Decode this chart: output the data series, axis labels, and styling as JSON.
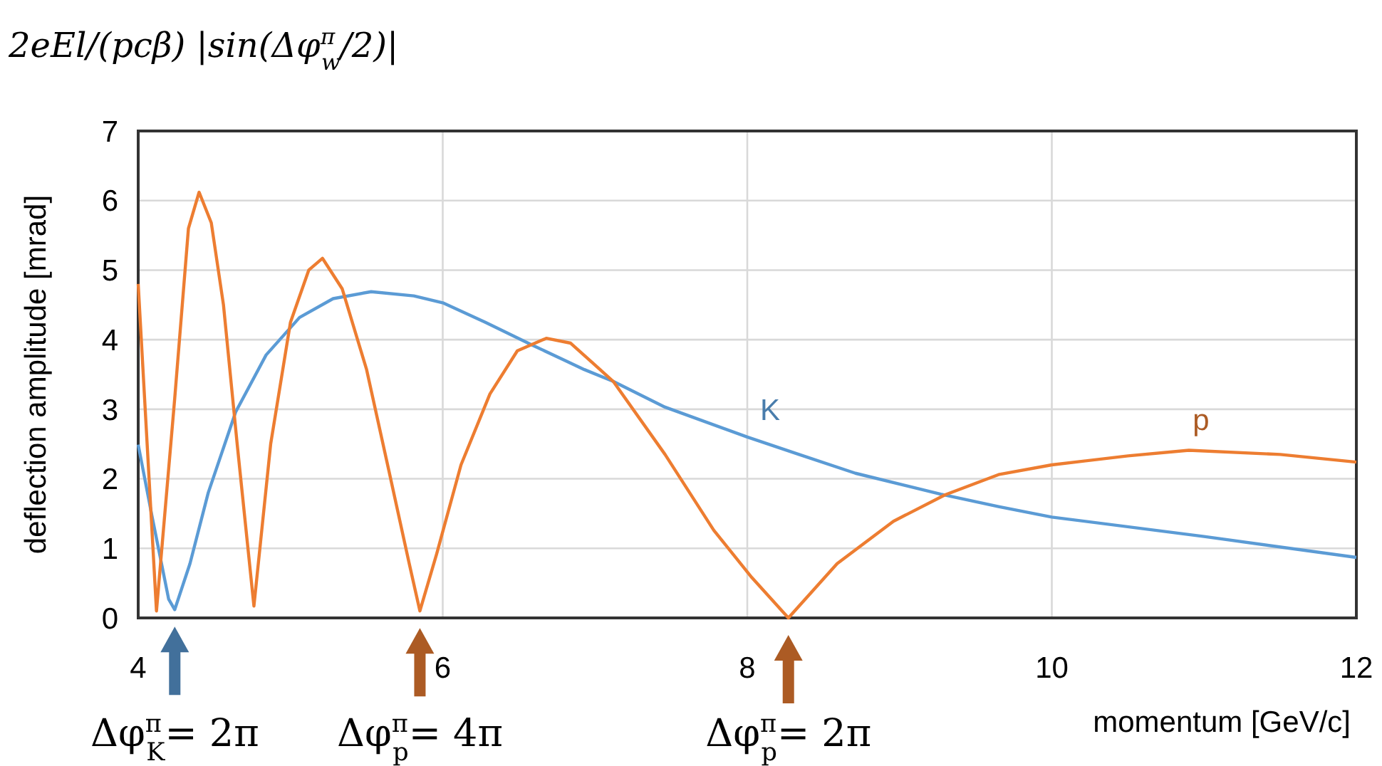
{
  "chart_data": {
    "type": "line",
    "xlabel": "momentum [GeV/c]",
    "ylabel": "deflection amplitude [mrad]",
    "xlim": [
      4,
      12
    ],
    "ylim": [
      0,
      7
    ],
    "xticks": [
      4,
      6,
      8,
      10,
      12
    ],
    "yticks": [
      0,
      1,
      2,
      3,
      4,
      5,
      6,
      7
    ],
    "grid": true,
    "legend": false,
    "marker": "none",
    "line_style": "solid",
    "series": [
      {
        "name": "K",
        "color": "#5b9bd5",
        "x": [
          4,
          4.09,
          4.2,
          4.24,
          4.34,
          4.46,
          4.64,
          4.84,
          5.06,
          5.28,
          5.53,
          5.81,
          6,
          6.28,
          6.59,
          6.93,
          7.12,
          7.46,
          8,
          8.34,
          8.71,
          9.27,
          9.65,
          10,
          11,
          12
        ],
        "values": [
          2.49,
          1.47,
          0.27,
          0.12,
          0.78,
          1.8,
          2.96,
          3.78,
          4.32,
          4.59,
          4.69,
          4.63,
          4.53,
          4.25,
          3.92,
          3.57,
          3.4,
          3.03,
          2.6,
          2.35,
          2.08,
          1.78,
          1.6,
          1.45,
          1.17,
          0.87
        ]
      },
      {
        "name": "p",
        "color": "#ed7d31",
        "x": [
          4,
          4.12,
          4.24,
          4.33,
          4.4,
          4.48,
          4.56,
          4.65,
          4.76,
          4.87,
          5,
          5.12,
          5.21,
          5.34,
          5.5,
          5.65,
          5.78,
          5.85,
          5.96,
          6.12,
          6.31,
          6.49,
          6.68,
          6.84,
          7.12,
          7.46,
          7.78,
          8.03,
          8.27,
          8.59,
          8.96,
          9.3,
          9.65,
          10,
          10.5,
          10.9,
          11.5,
          12
        ],
        "values": [
          4.8,
          0.1,
          3.16,
          5.6,
          6.12,
          5.68,
          4.5,
          2.5,
          0.17,
          2.5,
          4.25,
          5,
          5.17,
          4.73,
          3.57,
          2.08,
          0.78,
          0.1,
          0.92,
          2.2,
          3.22,
          3.84,
          4.02,
          3.95,
          3.4,
          2.35,
          1.26,
          0.58,
          0,
          0.78,
          1.39,
          1.77,
          2.06,
          2.2,
          2.33,
          2.41,
          2.35,
          2.24
        ]
      }
    ],
    "annotations": [
      "2eEl/(pcβ) |sin(Δφ$^{π}$$_{w}$/2)|",
      {
        "text": "Δφ$^{π}$$_{K}$= 2π",
        "x": 4.24,
        "y": 0.12
      },
      {
        "text": "Δφ$^{π}$$_{p}$= 4π",
        "x": 5.85,
        "y": 0.1
      },
      {
        "text": "Δφ$^{π}$$_{p}$= 2π",
        "x": 8.27,
        "y": 0
      }
    ]
  }
}
